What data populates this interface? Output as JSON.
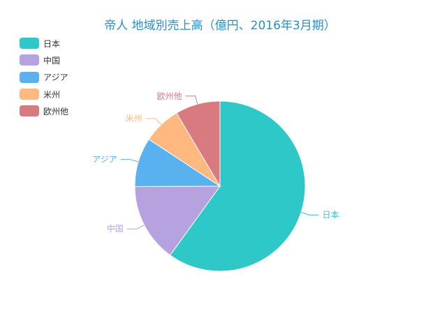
{
  "title": "帝人 地域別売上高（億円、2016年3月期）",
  "chart_data": {
    "type": "pie",
    "title": "帝人 地域別売上高（億円、2016年3月期）",
    "legend_position": "top-left",
    "categories": [
      "日本",
      "中国",
      "アジア",
      "米州",
      "欧州他"
    ],
    "values": [
      5000,
      1250,
      780,
      600,
      710
    ],
    "colors": [
      "#2ec8c9",
      "#b6a2de",
      "#5ab1ef",
      "#ffb980",
      "#d87a80"
    ]
  }
}
